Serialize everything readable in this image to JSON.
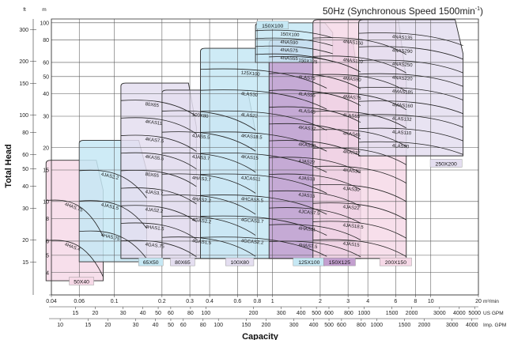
{
  "chart_data": {
    "type": "pump-performance-map",
    "title": "50Hz (Synchronous Speed 1500min",
    "title_sup": "-1",
    "title_close": ")",
    "xlabel": "Capacity",
    "ylabel": "Total Head",
    "x_scale": "log",
    "y_scale": "log",
    "xlim_m3min": [
      0.04,
      20
    ],
    "ylim_m": [
      3,
      105
    ],
    "units": {
      "m3min": "m³/min",
      "usgpm": "US GPM",
      "impgpm": "Imp. GPM",
      "m": "m",
      "ft": "ft"
    },
    "x_ticks_m3min": [
      "0.04",
      "0.06",
      "0.1",
      "0.2",
      "0.3",
      "0.4",
      "0.6",
      "0.8",
      "1",
      "2",
      "3",
      "4",
      "6",
      "8",
      "10",
      "20"
    ],
    "x_ticks_usgpm": [
      "15",
      "20",
      "30",
      "40",
      "50",
      "60",
      "80",
      "100",
      "200",
      "300",
      "400",
      "500",
      "600",
      "800",
      "1000",
      "1500",
      "2000",
      "3000",
      "4000",
      "5000"
    ],
    "x_ticks_impgpm": [
      "10",
      "15",
      "20",
      "30",
      "40",
      "50",
      "60",
      "80",
      "100",
      "150",
      "200",
      "300",
      "400",
      "500",
      "600",
      "800",
      "1000",
      "1500",
      "2000",
      "3000",
      "4000",
      "6000",
      "8000"
    ],
    "y_ticks_m": [
      "4",
      "5",
      "6",
      "8",
      "10",
      "15",
      "20",
      "30",
      "40",
      "50",
      "60",
      "80",
      "100"
    ],
    "y_ticks_ft": [
      "15",
      "20",
      "30",
      "40",
      "50",
      "60",
      "80",
      "100",
      "150",
      "200",
      "300"
    ],
    "families": [
      {
        "size": "50X40",
        "color": "#f6d9e7",
        "q": [
          0.037,
          0.085
        ],
        "h": [
          3.6,
          17
        ],
        "label_at": [
          0.062,
          3.55
        ],
        "curves": [
          "4HAS.75",
          "4HAS.4"
        ]
      },
      {
        "size": "65X50",
        "color": "#c6e8f4",
        "q": [
          0.06,
          0.16
        ],
        "h": [
          4.6,
          22
        ],
        "label_at": [
          0.17,
          4.55
        ],
        "curves": [
          "4JAS2.2",
          "4JAS1.5",
          "4HAS.75"
        ]
      },
      {
        "size": "80X65",
        "color": "#e4def0",
        "q": [
          0.11,
          0.33
        ],
        "h": [
          4.8,
          46
        ],
        "label_at": [
          0.27,
          4.55
        ],
        "curves": [
          "80X65",
          "4KAS11",
          "4KAS7.5",
          "4KAS5.5",
          "80X65",
          "4JAS3.7",
          "4JAS2.2",
          "4HAS1.5",
          "4GAS.75"
        ]
      },
      {
        "size": "100X80",
        "color": "#e4def0",
        "q": [
          0.2,
          0.78
        ],
        "h": [
          4.8,
          42
        ],
        "label_at": [
          0.62,
          4.55
        ],
        "curves": [
          "100X80",
          "4JAS5.5",
          "4JAS3.7",
          "4HAS3.7",
          "4HAS2.2",
          "4GAS2.2",
          "4GAS1.5"
        ]
      },
      {
        "size": "125X100",
        "color": "#c6e8f4",
        "q": [
          0.35,
          2.2
        ],
        "h": [
          4.8,
          72
        ],
        "label_at": [
          1.7,
          4.55
        ],
        "curves": [
          "125X100",
          "4LAS30",
          "4LAS22",
          "4KAS18.5",
          "4KAS15",
          "4JCAS11",
          "4HCAS5.5",
          "4GCAS3.7",
          "4GCAS2.2"
        ]
      },
      {
        "size": "150X125",
        "color": "#c39fcf",
        "q": [
          0.95,
          3.6
        ],
        "h": [
          4.8,
          80
        ],
        "label_at": [
          2.65,
          4.55
        ],
        "curves": [
          "150X125",
          "4LAS75",
          "4LAS55",
          "4LAS45",
          "4KAS37",
          "4KAS30",
          "4JAS22",
          "4JAS18",
          "4JAS15",
          "4JCAS7.5",
          "4HAS11",
          "4HAS7.5"
        ]
      },
      {
        "size": "150X100",
        "color": "#c6e8f4",
        "q": [
          0.78,
          2.4
        ],
        "h": [
          60,
          100
        ],
        "label_at": [
          1.0,
          96
        ],
        "curves": [
          "150X100",
          "4NAS90",
          "4NAS75",
          "4NAS55"
        ]
      },
      {
        "size": "200X150",
        "color": "#f6d9e7",
        "q": [
          1.8,
          7.0
        ],
        "h": [
          4.8,
          104
        ],
        "label_at": [
          6.0,
          4.55
        ],
        "curves": [
          "4NAS150",
          "4NAS110",
          "4MAS90",
          "4MAS75",
          "4LAS55",
          "4KAS45",
          "4KAS37",
          "4KAS30",
          "4JAS30",
          "4JAS22",
          "4JAS18.5",
          "4JAS15"
        ]
      },
      {
        "size": "250X200",
        "color": "#e4def0",
        "q": [
          3.5,
          16
        ],
        "h": [
          18,
          104
        ],
        "label_at": [
          12.5,
          16.2
        ],
        "curves": [
          "4NAS135",
          "4NAS290",
          "4NAS250",
          "4NAS220",
          "4MAS185",
          "4MAS160",
          "4LAS132",
          "4LAS110",
          "4LAS90"
        ]
      }
    ]
  }
}
